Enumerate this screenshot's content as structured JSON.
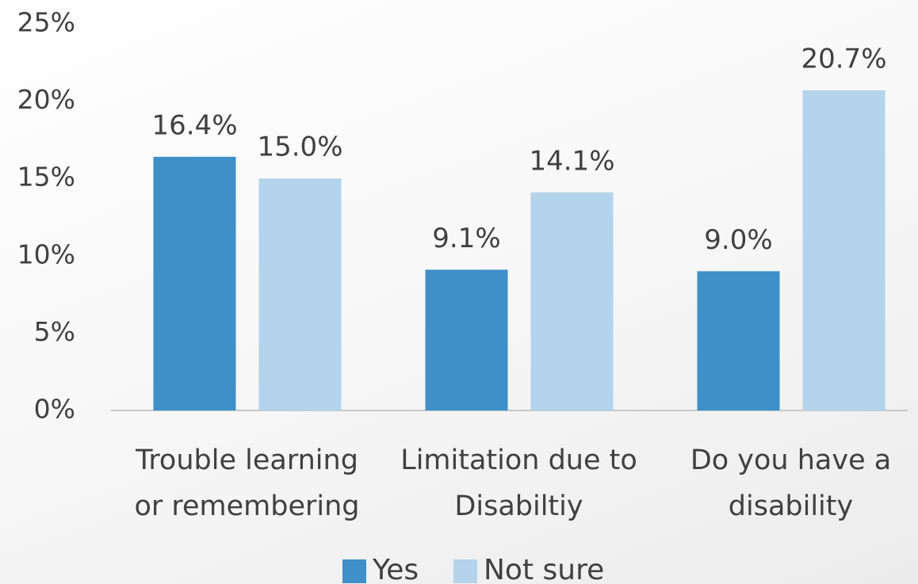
{
  "chart_data": {
    "type": "bar",
    "categories": [
      [
        "Trouble learning",
        "or remembering"
      ],
      [
        "Limitation due to",
        "Disabiltiy"
      ],
      [
        "Do you have a",
        "disability"
      ]
    ],
    "series": [
      {
        "name": "Yes",
        "color": "#3f8fc8",
        "values": [
          16.4,
          9.1,
          9.0
        ],
        "value_labels": [
          "16.4%",
          "9.1%",
          "9.0%"
        ]
      },
      {
        "name": "Not sure",
        "color": "#b3d4ea",
        "values": [
          15.0,
          14.1,
          20.7
        ],
        "value_labels": [
          "15.0%",
          "14.1%",
          "20.7%"
        ]
      }
    ],
    "ylim": [
      0,
      25
    ],
    "yticks": [
      {
        "value": 0,
        "label": "0%"
      },
      {
        "value": 5,
        "label": "5%"
      },
      {
        "value": 10,
        "label": "10%"
      },
      {
        "value": 15,
        "label": "15%"
      },
      {
        "value": 20,
        "label": "20%"
      },
      {
        "value": 25,
        "label": "25%"
      }
    ],
    "grid": false,
    "legend": "bottom"
  }
}
